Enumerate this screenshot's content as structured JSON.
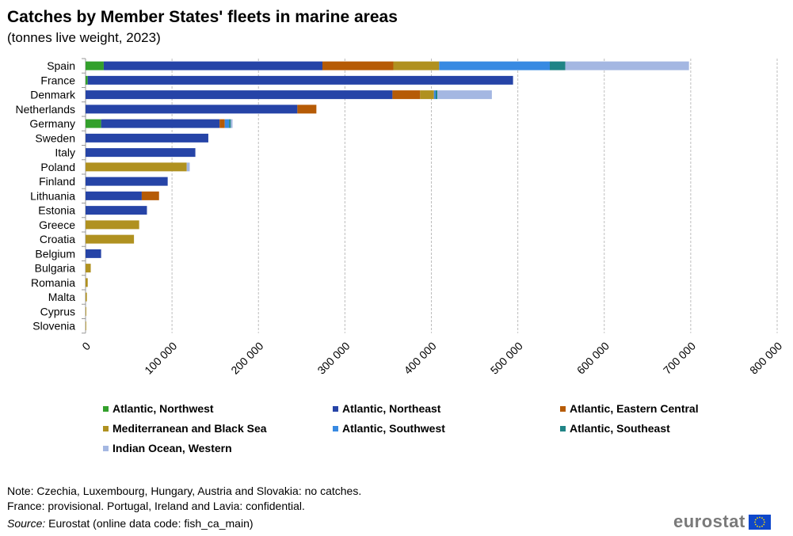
{
  "title": "Catches by Member States' fleets in marine areas",
  "subtitle": "(tonnes live weight, 2023)",
  "chart_data": {
    "type": "bar",
    "orientation": "horizontal",
    "stacked": true,
    "categories": [
      "Spain",
      "France",
      "Denmark",
      "Netherlands",
      "Germany",
      "Sweden",
      "Italy",
      "Poland",
      "Finland",
      "Lithuania",
      "Estonia",
      "Greece",
      "Croatia",
      "Belgium",
      "Bulgaria",
      "Romania",
      "Malta",
      "Cyprus",
      "Slovenia"
    ],
    "series": [
      {
        "name": "Atlantic, Northwest",
        "color": "#33a02c",
        "values": [
          21000,
          2500,
          0,
          0,
          18000,
          0,
          0,
          0,
          0,
          0,
          0,
          0,
          0,
          0,
          0,
          0,
          0,
          0,
          0
        ]
      },
      {
        "name": "Atlantic, Northeast",
        "color": "#2644a7",
        "values": [
          253000,
          492000,
          355000,
          245000,
          137000,
          142000,
          127000,
          0,
          95000,
          65000,
          71000,
          0,
          0,
          18000,
          0,
          0,
          0,
          0,
          0
        ]
      },
      {
        "name": "Atlantic, Eastern Central",
        "color": "#b65b06",
        "values": [
          82000,
          0,
          32000,
          22000,
          6000,
          0,
          0,
          0,
          0,
          20000,
          0,
          0,
          0,
          0,
          0,
          0,
          0,
          0,
          0
        ]
      },
      {
        "name": "Mediterranean and Black Sea",
        "color": "#b09120",
        "values": [
          53000,
          0,
          16000,
          0,
          0,
          0,
          0,
          117000,
          0,
          0,
          0,
          62000,
          56000,
          0,
          6000,
          2500,
          1500,
          800,
          400
        ]
      },
      {
        "name": "Atlantic, Southwest",
        "color": "#388ae2",
        "values": [
          128000,
          0,
          2000,
          0,
          5000,
          0,
          0,
          0,
          0,
          0,
          0,
          0,
          0,
          0,
          0,
          0,
          0,
          0,
          0
        ]
      },
      {
        "name": "Atlantic, Southeast",
        "color": "#208486",
        "values": [
          18000,
          0,
          2000,
          0,
          2000,
          0,
          0,
          0,
          0,
          0,
          0,
          0,
          0,
          0,
          0,
          0,
          0,
          0,
          0
        ]
      },
      {
        "name": "Indian Ocean, Western",
        "color": "#a4b7e2",
        "values": [
          143000,
          0,
          63000,
          0,
          2000,
          0,
          0,
          3500,
          0,
          0,
          0,
          0,
          0,
          0,
          0,
          0,
          0,
          0,
          0
        ]
      }
    ],
    "xlim": [
      0,
      800000
    ],
    "xticks": [
      "0",
      "100 000",
      "200 000",
      "300 000",
      "400 000",
      "500 000",
      "600 000",
      "700 000",
      "800 000"
    ],
    "xtick_values": [
      0,
      100000,
      200000,
      300000,
      400000,
      500000,
      600000,
      700000,
      800000
    ],
    "grid": true,
    "legend_position": "bottom"
  },
  "notes": {
    "line1": "Note: Czechia, Luxembourg, Hungary, Austria and Slovakia: no catches.",
    "line2": "France: provisional. Portugal, Ireland and Lavia: confidential.",
    "source_label": "Source:",
    "source_text": " Eurostat (online data code: fish_ca_main)"
  },
  "logo": {
    "text": "eurostat",
    "flag_color": "#0e47cb",
    "star_color": "#ffdd00"
  }
}
